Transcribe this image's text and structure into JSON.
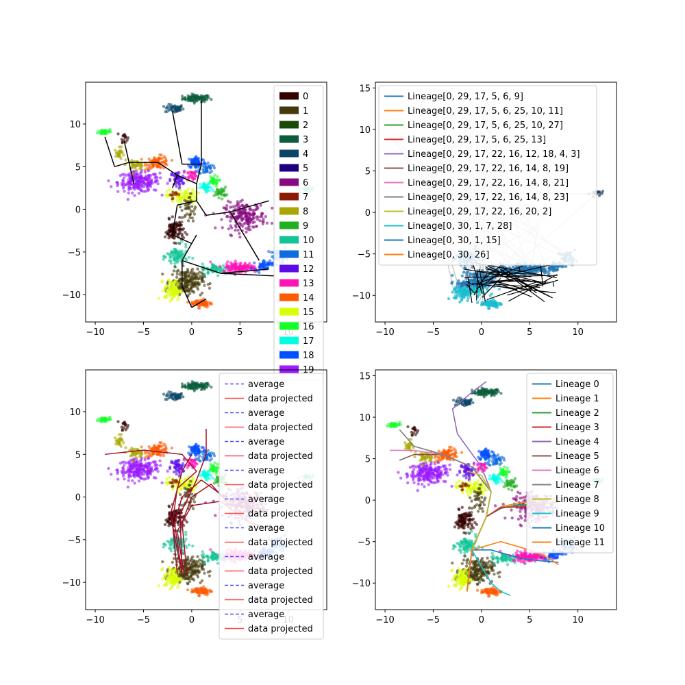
{
  "colors": {
    "cluster_palette": [
      "#330000",
      "#453a0b",
      "#1a4a0a",
      "#0a5c3a",
      "#0b4668",
      "#1c0080",
      "#880a80",
      "#8c1a00",
      "#a8a600",
      "#22b022",
      "#14c497",
      "#0f6be0",
      "#5c0ae6",
      "#ff14b8",
      "#ff5a00",
      "#d9ff00",
      "#14ff28",
      "#00ffe0",
      "#0050ff",
      "#9b1aff"
    ],
    "lineage_palette": [
      "#1f77b4",
      "#ff7f0e",
      "#2ca02c",
      "#d62728",
      "#9467bd",
      "#8c564b",
      "#e377c2",
      "#7f7f7f",
      "#bcbd22",
      "#17becf",
      "#1f77b4",
      "#ff7f0e"
    ],
    "average": "#4f4fff",
    "projected": "#ff4a4a",
    "avg_line": "#a0102a",
    "mst": "#000000",
    "bg_lines": "#cccccc"
  },
  "chart_data": [
    {
      "panel": "top-left",
      "type": "scatter",
      "title": "",
      "xlabel": "",
      "ylabel": "",
      "xlim": [
        -11,
        14
      ],
      "ylim": [
        -13.2,
        14.9
      ],
      "xticks": [
        -10,
        -5,
        0,
        5,
        10
      ],
      "yticks": [
        -10,
        -5,
        0,
        5,
        10
      ],
      "legend": {
        "position": "upper right",
        "entries": [
          "0",
          "1",
          "2",
          "3",
          "4",
          "5",
          "6",
          "7",
          "8",
          "9",
          "10",
          "11",
          "12",
          "13",
          "14",
          "15",
          "16",
          "17",
          "18",
          "19"
        ]
      },
      "mst_edges": [
        [
          [
            -7,
            8
          ],
          [
            -6.5,
            5.5
          ]
        ],
        [
          [
            -6.5,
            5.5
          ],
          [
            -6,
            3
          ]
        ],
        [
          [
            -6.5,
            5.5
          ],
          [
            -8,
            5
          ]
        ],
        [
          [
            -8,
            5
          ],
          [
            -9,
            8.5
          ]
        ],
        [
          [
            -6.5,
            5.5
          ],
          [
            -3.5,
            5.5
          ]
        ],
        [
          [
            -3.5,
            5.5
          ],
          [
            -1.5,
            4
          ]
        ],
        [
          [
            -1.5,
            4
          ],
          [
            0.5,
            3
          ]
        ],
        [
          [
            -1.5,
            4
          ],
          [
            -2,
            2.5
          ]
        ],
        [
          [
            0.5,
            3
          ],
          [
            1,
            5.3
          ]
        ],
        [
          [
            1,
            5.3
          ],
          [
            -1,
            5.3
          ]
        ],
        [
          [
            -1,
            5.3
          ],
          [
            -2,
            11.5
          ]
        ],
        [
          [
            1,
            5.3
          ],
          [
            1,
            12.8
          ]
        ],
        [
          [
            0.5,
            3
          ],
          [
            0.5,
            1
          ]
        ],
        [
          [
            0.5,
            1
          ],
          [
            -1.5,
            0.5
          ]
        ],
        [
          [
            0.5,
            1
          ],
          [
            1.5,
            -0.7
          ]
        ],
        [
          [
            1.5,
            -0.7
          ],
          [
            4,
            -0.3
          ]
        ],
        [
          [
            4,
            -0.3
          ],
          [
            8,
            1
          ]
        ],
        [
          [
            4,
            -0.3
          ],
          [
            7,
            -6
          ]
        ],
        [
          [
            -1.5,
            0.5
          ],
          [
            -2,
            -3
          ]
        ],
        [
          [
            -2,
            -3
          ],
          [
            0,
            -4
          ]
        ],
        [
          [
            0,
            -4
          ],
          [
            0.5,
            -3
          ]
        ],
        [
          [
            0,
            -4
          ],
          [
            -1,
            -6
          ]
        ],
        [
          [
            -1,
            -6
          ],
          [
            -1,
            -9
          ]
        ],
        [
          [
            -1,
            -9
          ],
          [
            0,
            -11.5
          ]
        ],
        [
          [
            0,
            -11.5
          ],
          [
            1.5,
            -10.5
          ]
        ],
        [
          [
            -1,
            -6
          ],
          [
            3,
            -7.5
          ]
        ],
        [
          [
            3,
            -7.5
          ],
          [
            8,
            -7
          ]
        ],
        [
          [
            3,
            -7.5
          ],
          [
            8.5,
            -7.8
          ]
        ]
      ]
    },
    {
      "panel": "top-right",
      "type": "scatter",
      "title": "",
      "xlabel": "",
      "ylabel": "",
      "xlim": [
        -11,
        14
      ],
      "ylim": [
        -13.2,
        15.7
      ],
      "xticks": [
        -10,
        -5,
        0,
        5,
        10
      ],
      "yticks": [
        -10,
        -5,
        0,
        5,
        10,
        15
      ],
      "legend": {
        "position": "upper left",
        "entries": [
          "Lineage[0, 29, 17, 5, 6, 9]",
          "Lineage[0, 29, 17, 5, 6, 25, 10, 11]",
          "Lineage[0, 29, 17, 5, 6, 25, 10, 27]",
          "Lineage[0, 29, 17, 5, 6, 25, 13]",
          "Lineage[0, 29, 17, 22, 16, 12, 18, 4, 3]",
          "Lineage[0, 29, 17, 22, 16, 14, 8, 19]",
          "Lineage[0, 29, 17, 22, 16, 14, 8, 21]",
          "Lineage[0, 29, 17, 22, 16, 14, 8, 23]",
          "Lineage[0, 29, 17, 22, 16, 20, 2]",
          "Lineage[0, 30, 1, 7, 28]",
          "Lineage[0, 30, 1, 15]",
          "Lineage[0, 30, 26]"
        ]
      }
    },
    {
      "panel": "bottom-left",
      "type": "scatter",
      "title": "",
      "xlabel": "",
      "ylabel": "",
      "xlim": [
        -11,
        14
      ],
      "ylim": [
        -13.2,
        14.9
      ],
      "xticks": [
        -10,
        -5,
        0,
        5,
        10
      ],
      "yticks": [
        -10,
        -5,
        0,
        5,
        10
      ],
      "legend": {
        "position": "upper right",
        "entries": [
          {
            "label": "average",
            "style": "dashed"
          },
          {
            "label": "data projected",
            "style": "solid"
          },
          {
            "label": "average",
            "style": "dashed"
          },
          {
            "label": "data projected",
            "style": "solid"
          },
          {
            "label": "average",
            "style": "dashed"
          },
          {
            "label": "data projected",
            "style": "solid"
          },
          {
            "label": "average",
            "style": "dashed"
          },
          {
            "label": "data projected",
            "style": "solid"
          },
          {
            "label": "average",
            "style": "dashed"
          },
          {
            "label": "data projected",
            "style": "solid"
          },
          {
            "label": "average",
            "style": "dashed"
          },
          {
            "label": "data projected",
            "style": "solid"
          },
          {
            "label": "average",
            "style": "dashed"
          },
          {
            "label": "data projected",
            "style": "solid"
          },
          {
            "label": "average",
            "style": "dashed"
          },
          {
            "label": "data projected",
            "style": "solid"
          },
          {
            "label": "average",
            "style": "dashed"
          },
          {
            "label": "data projected",
            "style": "solid"
          }
        ]
      }
    },
    {
      "panel": "bottom-right",
      "type": "line",
      "title": "",
      "xlabel": "",
      "ylabel": "",
      "xlim": [
        -11,
        14
      ],
      "ylim": [
        -13.2,
        15.7
      ],
      "xticks": [
        -10,
        -5,
        0,
        5,
        10
      ],
      "yticks": [
        -10,
        -5,
        0,
        5,
        10,
        15
      ],
      "legend": {
        "position": "upper right",
        "entries": [
          "Lineage 0",
          "Lineage 1",
          "Lineage 2",
          "Lineage 3",
          "Lineage 4",
          "Lineage 5",
          "Lineage 6",
          "Lineage 7",
          "Lineage 8",
          "Lineage 9",
          "Lineage 10",
          "Lineage 11"
        ]
      },
      "series": [
        {
          "name": "Lineage 0",
          "x": [
            -1.5,
            -1,
            0.5,
            2,
            4,
            6,
            8
          ],
          "y": [
            -11,
            -6,
            -2,
            -1,
            -0.5,
            -0.8,
            -1
          ]
        },
        {
          "name": "Lineage 1",
          "x": [
            -1.5,
            -1,
            0.5,
            2,
            4,
            6,
            8
          ],
          "y": [
            -11,
            -6,
            -2,
            -0.8,
            -0.3,
            0,
            0.3
          ]
        },
        {
          "name": "Lineage 2",
          "x": [
            -1.5,
            -1,
            0.5,
            2,
            4,
            6,
            8
          ],
          "y": [
            -11,
            -6,
            -2,
            -0.9,
            -0.6,
            -0.4,
            0
          ]
        },
        {
          "name": "Lineage 3",
          "x": [
            -1.5,
            -1,
            0.5,
            2,
            4,
            6,
            8
          ],
          "y": [
            -11,
            -6,
            -2,
            -0.9,
            -0.8,
            -0.6,
            -0.2
          ]
        },
        {
          "name": "Lineage 4",
          "x": [
            -1.5,
            -1,
            0.5,
            1,
            0,
            -2.5,
            -3,
            -1,
            0.5
          ],
          "y": [
            -11,
            -6,
            -2,
            1,
            4,
            8,
            11,
            13,
            14.3
          ]
        },
        {
          "name": "Lineage 5",
          "x": [
            -1.5,
            -1,
            0.5,
            1,
            -1,
            -4,
            -7,
            -8.5
          ],
          "y": [
            -11,
            -6,
            -2,
            1,
            4,
            5.5,
            5.5,
            4.8
          ]
        },
        {
          "name": "Lineage 6",
          "x": [
            -1.5,
            -1,
            0.5,
            1,
            -1,
            -4,
            -7,
            -9.5
          ],
          "y": [
            -11,
            -6,
            -2,
            1,
            4,
            5.5,
            6,
            6
          ]
        },
        {
          "name": "Lineage 7",
          "x": [
            -1.5,
            -1,
            0.5,
            1,
            -1,
            -4,
            -7,
            -8.5
          ],
          "y": [
            -11,
            -6,
            -2,
            1,
            4,
            5.5,
            6.5,
            8.5
          ]
        },
        {
          "name": "Lineage 8",
          "x": [
            -1.5,
            -1,
            0.5,
            1,
            0,
            -1.5
          ],
          "y": [
            -11,
            -6,
            -2,
            1,
            3,
            3.5
          ]
        },
        {
          "name": "Lineage 9",
          "x": [
            -1.5,
            -1,
            0,
            1,
            2,
            3
          ],
          "y": [
            -11,
            -6,
            -8,
            -10,
            -11,
            -11.5
          ]
        },
        {
          "name": "Lineage 10",
          "x": [
            -1.5,
            -1,
            1,
            4,
            6,
            8
          ],
          "y": [
            -11,
            -6,
            -6,
            -7,
            -7.3,
            -7.5
          ]
        },
        {
          "name": "Lineage 11",
          "x": [
            -1.5,
            -1,
            2,
            5,
            7,
            8
          ],
          "y": [
            -11,
            -6,
            -5,
            -6,
            -7,
            -7.8
          ]
        }
      ]
    }
  ]
}
